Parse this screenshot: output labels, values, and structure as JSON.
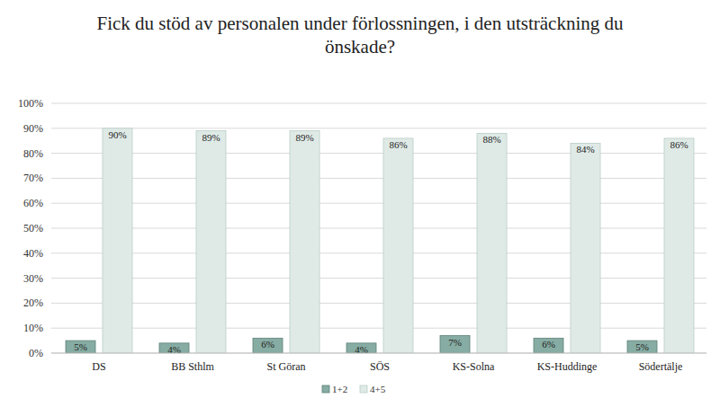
{
  "chart_data": {
    "type": "bar",
    "title": "Fick du stöd av personalen under förlossningen, i den utsträckning du önskade?",
    "categories": [
      "DS",
      "BB Sthlm",
      "St Göran",
      "SÖS",
      "KS-Solna",
      "KS-Huddinge",
      "Södertälje"
    ],
    "series": [
      {
        "name": "1+2",
        "color": "#86aca3",
        "values": [
          5,
          4,
          6,
          4,
          7,
          6,
          5
        ],
        "value_labels": [
          "5%",
          "4%",
          "6%",
          "4%",
          "7%",
          "6%",
          "5%"
        ]
      },
      {
        "name": "4+5",
        "color": "#dfeae6",
        "values": [
          90,
          89,
          89,
          86,
          88,
          84,
          86
        ],
        "value_labels": [
          "90%",
          "89%",
          "89%",
          "86%",
          "88%",
          "84%",
          "86%"
        ]
      }
    ],
    "ylim": [
      0,
      100
    ],
    "yticks": [
      {
        "value": 0,
        "label": "0%"
      },
      {
        "value": 10,
        "label": "10%"
      },
      {
        "value": 20,
        "label": "20%"
      },
      {
        "value": 30,
        "label": "30%"
      },
      {
        "value": 40,
        "label": "40%"
      },
      {
        "value": 50,
        "label": "50%"
      },
      {
        "value": 60,
        "label": "60%"
      },
      {
        "value": 70,
        "label": "70%"
      },
      {
        "value": 80,
        "label": "80%"
      },
      {
        "value": 90,
        "label": "90%"
      },
      {
        "value": 100,
        "label": "100%"
      }
    ],
    "grid": true,
    "data_labels": true,
    "legend": "bottom"
  }
}
